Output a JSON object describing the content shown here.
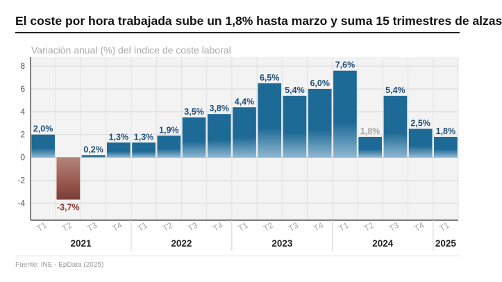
{
  "header": {
    "title": "El coste por hora trabajada sube un 1,8% hasta marzo y suma 15 trimestres de alzas",
    "subtitle": "Variación anual (%) del índice de coste laboral"
  },
  "footer": {
    "source": "Fuente: INE - EpData (2025)"
  },
  "colors": {
    "positive_bar": "#1e6a96",
    "negative_bar": "#9b5a52",
    "positive_label": "#1f4e79",
    "negative_label": "#8b3a30",
    "muted_label": "#a8a8a8",
    "plot_background": "#f3f3f3"
  },
  "chart_data": {
    "type": "bar",
    "categories": [
      "T1",
      "T2",
      "T3",
      "T4",
      "T1",
      "T2",
      "T3",
      "T4",
      "T1",
      "T2",
      "T3",
      "T4",
      "T1",
      "T2",
      "T3",
      "T4",
      "T1"
    ],
    "years": [
      {
        "label": "2021",
        "quarters": 4
      },
      {
        "label": "2022",
        "quarters": 4
      },
      {
        "label": "2023",
        "quarters": 4
      },
      {
        "label": "2024",
        "quarters": 4
      },
      {
        "label": "2025",
        "quarters": 1
      }
    ],
    "values": [
      2.0,
      -3.7,
      0.2,
      1.3,
      1.3,
      1.9,
      3.5,
      3.8,
      4.4,
      6.5,
      5.4,
      6.0,
      7.6,
      1.8,
      5.4,
      2.5,
      1.8
    ],
    "value_labels": [
      "2,0%",
      "-3,7%",
      "0,2%",
      "1,3%",
      "1,3%",
      "1,9%",
      "3,5%",
      "3,8%",
      "4,4%",
      "6,5%",
      "5,4%",
      "6,0%",
      "7,6%",
      "1,8%",
      "5,4%",
      "2,5%",
      "1,8%"
    ],
    "muted_label_indices": [
      13
    ],
    "yticks": [
      8,
      6,
      4,
      2,
      0,
      -2,
      -4
    ],
    "ylim": [
      -5.5,
      8.8
    ],
    "grid": true,
    "xlabel": "",
    "ylabel": ""
  }
}
